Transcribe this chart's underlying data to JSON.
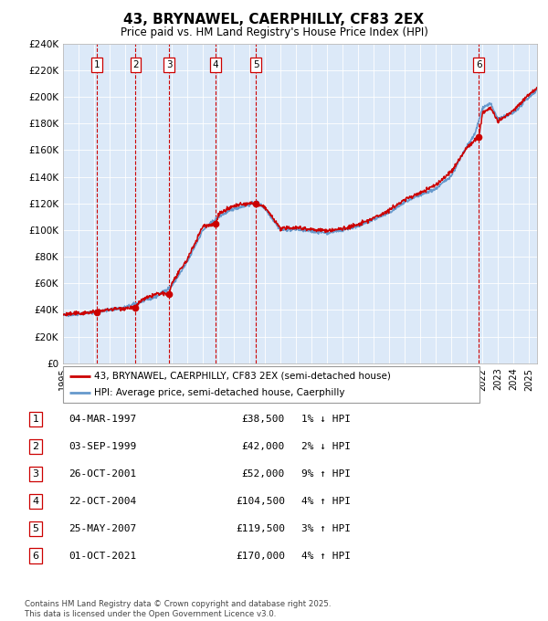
{
  "title": "43, BRYNAWEL, CAERPHILLY, CF83 2EX",
  "subtitle": "Price paid vs. HM Land Registry's House Price Index (HPI)",
  "legend_line1": "43, BRYNAWEL, CAERPHILLY, CF83 2EX (semi-detached house)",
  "legend_line2": "HPI: Average price, semi-detached house, Caerphilly",
  "footer": "Contains HM Land Registry data © Crown copyright and database right 2025.\nThis data is licensed under the Open Government Licence v3.0.",
  "sales": [
    {
      "num": 1,
      "date": "04-MAR-1997",
      "year": 1997.17,
      "price": 38500,
      "pct": "1%",
      "dir": "↓"
    },
    {
      "num": 2,
      "date": "03-SEP-1999",
      "year": 1999.67,
      "price": 42000,
      "pct": "2%",
      "dir": "↓"
    },
    {
      "num": 3,
      "date": "26-OCT-2001",
      "year": 2001.82,
      "price": 52000,
      "pct": "9%",
      "dir": "↑"
    },
    {
      "num": 4,
      "date": "22-OCT-2004",
      "year": 2004.81,
      "price": 104500,
      "pct": "4%",
      "dir": "↑"
    },
    {
      "num": 5,
      "date": "25-MAY-2007",
      "year": 2007.4,
      "price": 119500,
      "pct": "3%",
      "dir": "↑"
    },
    {
      "num": 6,
      "date": "01-OCT-2021",
      "year": 2021.75,
      "price": 170000,
      "pct": "4%",
      "dir": "↑"
    }
  ],
  "ylim": [
    0,
    240000
  ],
  "xlim": [
    1995,
    2025.5
  ],
  "yticks": [
    0,
    20000,
    40000,
    60000,
    80000,
    100000,
    120000,
    140000,
    160000,
    180000,
    200000,
    220000,
    240000
  ],
  "bg_color": "#dce9f8",
  "red_line": "#cc0000",
  "blue_line": "#6699cc",
  "vline_color": "#cc0000",
  "box_color": "#cc0000",
  "title_fontsize": 11,
  "subtitle_fontsize": 9
}
